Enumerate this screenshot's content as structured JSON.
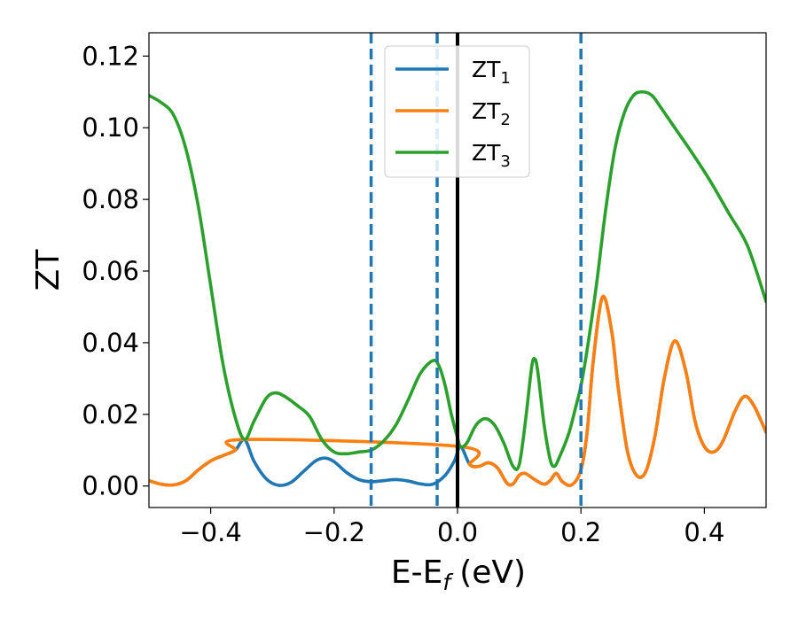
{
  "chart_data": {
    "type": "line",
    "xlabel": {
      "main": "E-E",
      "sub": "f",
      "unit": "(eV)"
    },
    "ylabel": "ZT",
    "xlim": [
      -0.5,
      0.5
    ],
    "ylim": [
      -0.006,
      0.1265
    ],
    "x_ticks": [
      -0.4,
      -0.2,
      0.0,
      0.2,
      0.4
    ],
    "x_tick_labels": [
      "−0.4",
      "−0.2",
      "0.0",
      "0.2",
      "0.4"
    ],
    "y_ticks": [
      0.0,
      0.02,
      0.04,
      0.06,
      0.08,
      0.1,
      0.12
    ],
    "y_tick_labels": [
      "0.00",
      "0.02",
      "0.04",
      "0.06",
      "0.08",
      "0.10",
      "0.12"
    ],
    "grid": false,
    "legend_position": "top-center",
    "vlines": [
      {
        "x": -0.14,
        "style": "dashed",
        "color": "#1f77b4"
      },
      {
        "x": -0.033,
        "style": "dashed",
        "color": "#1f77b4"
      },
      {
        "x": 0.0,
        "style": "solid",
        "color": "#000000"
      },
      {
        "x": 0.2,
        "style": "dashed",
        "color": "#1f77b4"
      }
    ],
    "series": [
      {
        "name": "ZT",
        "sub": "1",
        "color": "#1f77b4",
        "points": [
          [
            -0.5,
            0.0015
          ],
          [
            -0.48,
            0.0005
          ],
          [
            -0.46,
            0.0003
          ],
          [
            -0.44,
            0.0015
          ],
          [
            -0.42,
            0.0045
          ],
          [
            -0.4,
            0.007
          ],
          [
            -0.38,
            0.0085
          ],
          [
            -0.36,
            0.01
          ],
          [
            -0.345,
            0.013
          ],
          [
            -0.33,
            0.007
          ],
          [
            -0.31,
            0.002
          ],
          [
            -0.29,
            0.0002
          ],
          [
            -0.27,
            0.001
          ],
          [
            -0.25,
            0.004
          ],
          [
            -0.23,
            0.007
          ],
          [
            -0.215,
            0.0078
          ],
          [
            -0.2,
            0.0068
          ],
          [
            -0.18,
            0.0038
          ],
          [
            -0.16,
            0.0018
          ],
          [
            -0.14,
            0.0012
          ],
          [
            -0.12,
            0.0015
          ],
          [
            -0.1,
            0.0018
          ],
          [
            -0.08,
            0.0014
          ],
          [
            -0.06,
            0.0006
          ],
          [
            -0.04,
            0.0005
          ],
          [
            -0.02,
            0.003
          ],
          [
            -0.005,
            0.007
          ],
          [
            0.005,
            0.011
          ],
          [
            0.02,
            0.006
          ],
          [
            0.035,
            0.0055
          ],
          [
            0.05,
            0.0065
          ],
          [
            0.065,
            0.005
          ],
          [
            0.08,
            0.0008
          ],
          [
            0.09,
            0.0006
          ],
          [
            0.1,
            0.003
          ],
          [
            0.11,
            0.0035
          ],
          [
            0.125,
            0.0018
          ],
          [
            0.14,
            0.0005
          ],
          [
            0.15,
            0.0015
          ],
          [
            0.16,
            0.0035
          ],
          [
            0.17,
            0.0012
          ],
          [
            0.185,
            0.0003
          ],
          [
            0.2,
            0.0045
          ],
          [
            0.21,
            0.015
          ],
          [
            0.22,
            0.035
          ],
          [
            0.235,
            0.0528
          ],
          [
            0.25,
            0.043
          ],
          [
            0.26,
            0.028
          ],
          [
            0.275,
            0.01
          ],
          [
            0.29,
            0.003
          ],
          [
            0.305,
            0.004
          ],
          [
            0.32,
            0.014
          ],
          [
            0.335,
            0.03
          ],
          [
            0.352,
            0.0405
          ],
          [
            0.37,
            0.032
          ],
          [
            0.385,
            0.018
          ],
          [
            0.4,
            0.011
          ],
          [
            0.415,
            0.0095
          ],
          [
            0.43,
            0.0125
          ],
          [
            0.45,
            0.021
          ],
          [
            0.465,
            0.025
          ],
          [
            0.48,
            0.0225
          ],
          [
            0.5,
            0.015
          ]
        ]
      },
      {
        "name": "ZT",
        "sub": "2",
        "color": "#ff7f0e",
        "points": [
          [
            -0.5,
            0.0015
          ],
          [
            -0.48,
            0.0005
          ],
          [
            -0.46,
            0.0003
          ],
          [
            -0.44,
            0.0015
          ],
          [
            -0.42,
            0.0045
          ],
          [
            -0.4,
            0.007
          ],
          [
            -0.38,
            0.0085
          ],
          [
            -0.36,
            0.01
          ],
          [
            -0.345,
            0.013
          ],
          [
            0.005,
            0.011
          ],
          [
            0.02,
            0.006
          ],
          [
            0.035,
            0.0055
          ],
          [
            0.05,
            0.0065
          ],
          [
            0.065,
            0.005
          ],
          [
            0.08,
            0.0008
          ],
          [
            0.09,
            0.0006
          ],
          [
            0.1,
            0.003
          ],
          [
            0.11,
            0.0035
          ],
          [
            0.125,
            0.0018
          ],
          [
            0.14,
            0.0005
          ],
          [
            0.15,
            0.0015
          ],
          [
            0.16,
            0.0035
          ],
          [
            0.17,
            0.0012
          ],
          [
            0.185,
            0.0003
          ],
          [
            0.2,
            0.0045
          ],
          [
            0.21,
            0.015
          ],
          [
            0.22,
            0.035
          ],
          [
            0.235,
            0.0528
          ],
          [
            0.25,
            0.043
          ],
          [
            0.26,
            0.028
          ],
          [
            0.275,
            0.01
          ],
          [
            0.29,
            0.003
          ],
          [
            0.305,
            0.004
          ],
          [
            0.32,
            0.014
          ],
          [
            0.335,
            0.03
          ],
          [
            0.352,
            0.0405
          ],
          [
            0.37,
            0.032
          ],
          [
            0.385,
            0.018
          ],
          [
            0.4,
            0.011
          ],
          [
            0.415,
            0.0095
          ],
          [
            0.43,
            0.0125
          ],
          [
            0.45,
            0.021
          ],
          [
            0.465,
            0.025
          ],
          [
            0.48,
            0.0225
          ],
          [
            0.5,
            0.015
          ]
        ]
      },
      {
        "name": "ZT",
        "sub": "3",
        "color": "#2ca02c",
        "points": [
          [
            -0.5,
            0.109
          ],
          [
            -0.48,
            0.107
          ],
          [
            -0.46,
            0.1035
          ],
          [
            -0.44,
            0.094
          ],
          [
            -0.42,
            0.078
          ],
          [
            -0.4,
            0.056
          ],
          [
            -0.38,
            0.034
          ],
          [
            -0.36,
            0.019
          ],
          [
            -0.345,
            0.013
          ],
          [
            -0.33,
            0.018
          ],
          [
            -0.31,
            0.0245
          ],
          [
            -0.295,
            0.026
          ],
          [
            -0.28,
            0.025
          ],
          [
            -0.26,
            0.0225
          ],
          [
            -0.24,
            0.0195
          ],
          [
            -0.22,
            0.013
          ],
          [
            -0.2,
            0.0095
          ],
          [
            -0.18,
            0.009
          ],
          [
            -0.16,
            0.0095
          ],
          [
            -0.14,
            0.01
          ],
          [
            -0.12,
            0.0125
          ],
          [
            -0.1,
            0.017
          ],
          [
            -0.08,
            0.024
          ],
          [
            -0.06,
            0.0315
          ],
          [
            -0.04,
            0.035
          ],
          [
            -0.03,
            0.0335
          ],
          [
            -0.02,
            0.028
          ],
          [
            -0.01,
            0.02
          ],
          [
            0.0,
            0.0135
          ],
          [
            0.005,
            0.011
          ],
          [
            0.015,
            0.012
          ],
          [
            0.03,
            0.017
          ],
          [
            0.045,
            0.0188
          ],
          [
            0.06,
            0.017
          ],
          [
            0.075,
            0.012
          ],
          [
            0.09,
            0.0055
          ],
          [
            0.1,
            0.006
          ],
          [
            0.11,
            0.018
          ],
          [
            0.12,
            0.033
          ],
          [
            0.125,
            0.0355
          ],
          [
            0.13,
            0.032
          ],
          [
            0.14,
            0.0175
          ],
          [
            0.15,
            0.0075
          ],
          [
            0.157,
            0.0055
          ],
          [
            0.165,
            0.008
          ],
          [
            0.18,
            0.0145
          ],
          [
            0.19,
            0.021
          ],
          [
            0.2,
            0.028
          ],
          [
            0.21,
            0.038
          ],
          [
            0.225,
            0.056
          ],
          [
            0.24,
            0.077
          ],
          [
            0.255,
            0.094
          ],
          [
            0.27,
            0.104
          ],
          [
            0.285,
            0.109
          ],
          [
            0.3,
            0.11
          ],
          [
            0.315,
            0.109
          ],
          [
            0.33,
            0.1055
          ],
          [
            0.35,
            0.1005
          ],
          [
            0.38,
            0.093
          ],
          [
            0.41,
            0.085
          ],
          [
            0.44,
            0.076
          ],
          [
            0.47,
            0.067
          ],
          [
            0.5,
            0.0515
          ]
        ]
      }
    ]
  }
}
